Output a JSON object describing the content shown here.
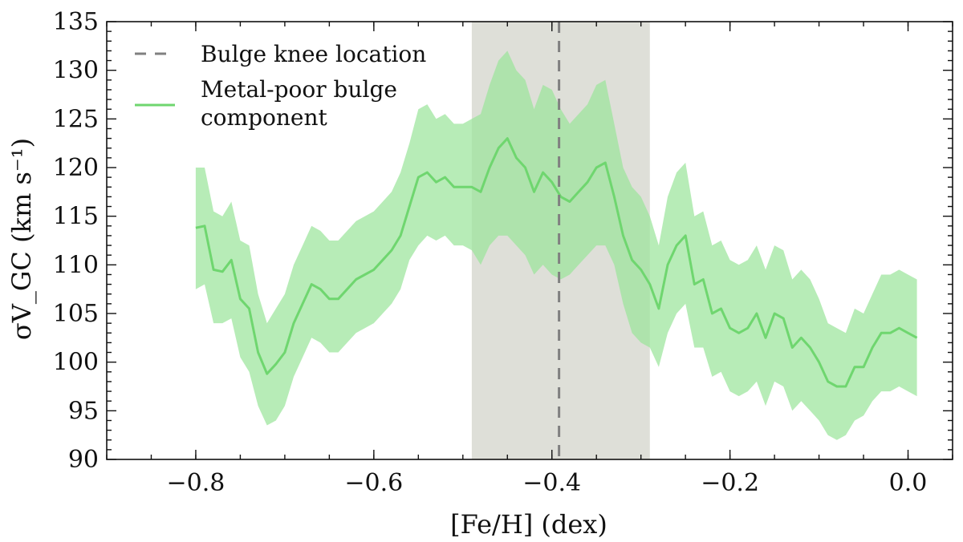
{
  "chart_data": {
    "type": "line",
    "title": "",
    "xlabel": "[Fe/H] (dex)",
    "ylabel": "σV_GC (km s⁻¹)",
    "xlim": [
      -0.9,
      0.05
    ],
    "ylim": [
      90,
      135
    ],
    "xticks": [
      -0.8,
      -0.6,
      -0.4,
      -0.2,
      0.0
    ],
    "xtick_labels": [
      "−0.8",
      "−0.6",
      "−0.4",
      "−0.2",
      "0.0"
    ],
    "yticks": [
      90,
      95,
      100,
      105,
      110,
      115,
      120,
      125,
      130,
      135
    ],
    "ytick_labels": [
      "90",
      "95",
      "100",
      "105",
      "110",
      "115",
      "120",
      "125",
      "130",
      "135"
    ],
    "shaded_region": {
      "x_range": [
        -0.49,
        -0.29
      ],
      "color": "#dedfd8"
    },
    "vertical_line": {
      "x": -0.392,
      "label": "Bulge knee location",
      "color": "#808080",
      "style": "dashed"
    },
    "series": [
      {
        "name": "Metal-poor bulge component",
        "color": "#6fd66f",
        "band_color": "#9be59b",
        "x": [
          -0.8,
          -0.79,
          -0.78,
          -0.77,
          -0.76,
          -0.75,
          -0.74,
          -0.73,
          -0.72,
          -0.71,
          -0.7,
          -0.69,
          -0.68,
          -0.67,
          -0.66,
          -0.65,
          -0.64,
          -0.63,
          -0.62,
          -0.61,
          -0.6,
          -0.59,
          -0.58,
          -0.57,
          -0.56,
          -0.55,
          -0.54,
          -0.53,
          -0.52,
          -0.51,
          -0.5,
          -0.49,
          -0.48,
          -0.47,
          -0.46,
          -0.45,
          -0.44,
          -0.43,
          -0.42,
          -0.41,
          -0.4,
          -0.39,
          -0.38,
          -0.37,
          -0.36,
          -0.35,
          -0.34,
          -0.33,
          -0.32,
          -0.31,
          -0.3,
          -0.29,
          -0.28,
          -0.27,
          -0.26,
          -0.25,
          -0.24,
          -0.23,
          -0.22,
          -0.21,
          -0.2,
          -0.19,
          -0.18,
          -0.17,
          -0.16,
          -0.15,
          -0.14,
          -0.13,
          -0.12,
          -0.11,
          -0.1,
          -0.09,
          -0.08,
          -0.07,
          -0.06,
          -0.05,
          -0.04,
          -0.03,
          -0.02,
          -0.01,
          0.0,
          0.01
        ],
        "y": [
          113.8,
          114.0,
          109.5,
          109.3,
          110.5,
          106.5,
          105.5,
          101.0,
          98.8,
          99.8,
          101.0,
          104.0,
          106.0,
          108.0,
          107.5,
          106.5,
          106.5,
          107.5,
          108.5,
          109.0,
          109.5,
          110.5,
          111.5,
          113.0,
          116.0,
          119.0,
          119.5,
          118.5,
          119.0,
          118.0,
          118.0,
          118.0,
          117.5,
          120.0,
          122.0,
          123.0,
          121.0,
          120.0,
          117.5,
          119.5,
          118.5,
          117.0,
          116.5,
          117.5,
          118.5,
          120.0,
          120.5,
          117.0,
          113.0,
          110.5,
          109.5,
          108.0,
          105.5,
          110.0,
          112.0,
          113.0,
          108.0,
          108.5,
          105.0,
          105.5,
          103.5,
          103.0,
          103.5,
          105.0,
          102.5,
          105.0,
          104.5,
          101.5,
          102.5,
          101.5,
          100.0,
          98.0,
          97.5,
          97.5,
          99.5,
          99.5,
          101.5,
          103.0,
          103.0,
          103.5,
          103.0,
          102.5
        ],
        "y_lower": [
          107.5,
          108.0,
          104.0,
          104.0,
          104.5,
          100.5,
          99.0,
          95.5,
          93.5,
          94.0,
          95.5,
          98.5,
          100.5,
          102.5,
          102.0,
          101.0,
          101.0,
          102.0,
          103.0,
          103.5,
          104.0,
          105.0,
          106.0,
          107.5,
          110.5,
          112.0,
          113.0,
          112.5,
          113.0,
          112.0,
          112.0,
          111.5,
          110.0,
          112.0,
          113.0,
          113.0,
          112.0,
          111.0,
          109.0,
          110.0,
          109.0,
          108.5,
          109.0,
          110.0,
          111.0,
          112.0,
          112.0,
          110.0,
          106.0,
          103.0,
          102.0,
          101.5,
          99.5,
          103.0,
          105.0,
          106.0,
          101.5,
          101.5,
          98.5,
          99.0,
          97.0,
          96.5,
          97.0,
          98.0,
          95.5,
          98.0,
          97.5,
          95.0,
          96.0,
          95.0,
          94.0,
          92.5,
          92.0,
          92.5,
          94.0,
          94.5,
          96.0,
          97.0,
          97.0,
          97.5,
          97.0,
          96.5
        ],
        "y_upper": [
          120.0,
          120.0,
          115.5,
          115.0,
          116.5,
          112.5,
          112.0,
          107.0,
          104.0,
          105.5,
          107.0,
          110.0,
          112.0,
          114.0,
          113.5,
          112.5,
          112.5,
          113.5,
          114.5,
          115.0,
          115.5,
          116.5,
          117.5,
          119.5,
          122.5,
          126.0,
          126.5,
          125.0,
          125.5,
          124.5,
          124.5,
          125.0,
          125.5,
          128.5,
          131.0,
          132.0,
          130.0,
          129.0,
          126.0,
          128.5,
          128.0,
          126.0,
          124.5,
          125.5,
          126.5,
          128.5,
          129.0,
          124.5,
          120.0,
          118.0,
          117.0,
          115.0,
          112.0,
          117.0,
          119.5,
          120.5,
          115.0,
          115.5,
          112.0,
          112.5,
          110.5,
          110.0,
          110.5,
          112.0,
          109.5,
          112.0,
          111.5,
          108.5,
          109.5,
          108.5,
          106.5,
          104.0,
          103.5,
          103.0,
          105.5,
          105.0,
          107.0,
          109.0,
          109.0,
          109.5,
          109.0,
          108.5
        ]
      }
    ],
    "legend": {
      "position": "top-left",
      "entries": [
        {
          "label_lines": [
            "Bulge knee location"
          ]
        },
        {
          "label_lines": [
            "Metal-poor bulge",
            "component"
          ]
        }
      ]
    }
  }
}
